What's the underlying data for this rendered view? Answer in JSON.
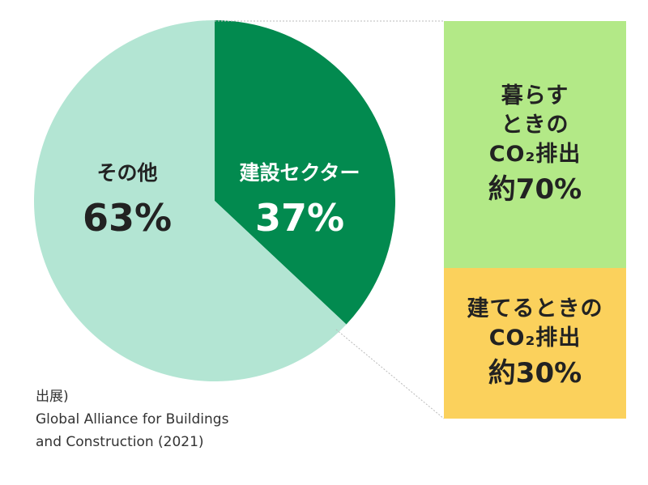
{
  "chart_data": {
    "type": "pie",
    "slices": [
      {
        "label": "建設セクター",
        "value": 37,
        "value_label": "37%",
        "color": "#028a4f",
        "text_color": "#ffffff"
      },
      {
        "label": "その他",
        "value": 63,
        "value_label": "63%",
        "color": "#b3e5d3",
        "text_color": "#222222"
      }
    ],
    "breakdown": [
      {
        "lines": [
          "暮らす",
          "ときの",
          "CO₂排出"
        ],
        "value_label": "約70%",
        "value": 70,
        "color": "#b3e987"
      },
      {
        "lines": [
          "建てるときの",
          "CO₂排出"
        ],
        "value_label": "約30%",
        "value": 30,
        "color": "#fbd15c"
      }
    ]
  },
  "source": {
    "line1": "出展)",
    "line2": "Global Alliance for Buildings",
    "line3": "and Construction (2021)"
  }
}
